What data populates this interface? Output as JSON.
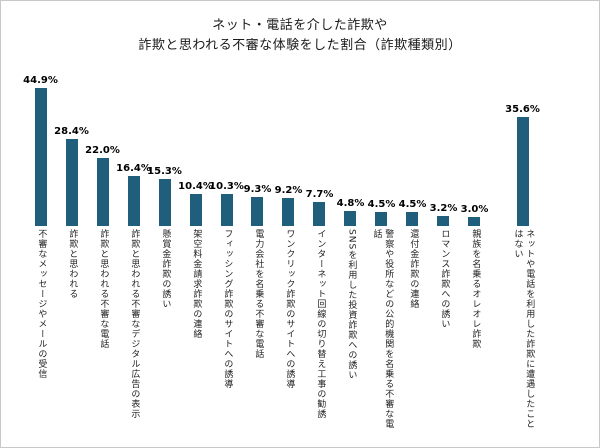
{
  "header": {
    "title_line1": "ネット・電話を介した詐欺や",
    "title_line2": "詐欺と思われる不審な体験をした割合（詐欺種類別）"
  },
  "chart_data": {
    "type": "bar",
    "title": "ネット・電話を介した詐欺や 詐欺と思われる不審な体験をした割合（詐欺種類別）",
    "categories": [
      "不審なメッセージやメールの受信",
      "詐欺と思われる",
      "詐欺と思われる不審な電話",
      "詐欺と思われる不審なデジタル広告の表示",
      "懸賞金詐欺の誘い",
      "架空料金請求詐欺の連絡",
      "フィッシング詐欺のサイトへの誘導",
      "電力会社を名乗る不審な電話",
      "ワンクリック詐欺のサイトへの誘導",
      "インターネット回線の切り替え工事の勧誘",
      "SNSを利用した投資詐欺への誘い",
      "警察や役所などの公的機関を名乗る不審な電話",
      "還付金詐欺の連絡",
      "ロマンス詐欺への誘い",
      "親族を名乗るオレオレ詐欺",
      "ネットや電話を利用した詐欺に遭遇したことはない"
    ],
    "values": [
      44.9,
      28.4,
      22.0,
      16.4,
      15.3,
      10.4,
      10.3,
      9.3,
      9.2,
      7.7,
      4.8,
      4.5,
      4.5,
      3.2,
      3.0,
      35.6
    ],
    "value_suffix": "%",
    "xlabel": "",
    "ylabel": "",
    "ylim": [
      0,
      50
    ],
    "grid": false,
    "legend": "none",
    "bar_color": "#1f5f7c",
    "value_labels_shown": true,
    "last_bar_separated": true
  }
}
